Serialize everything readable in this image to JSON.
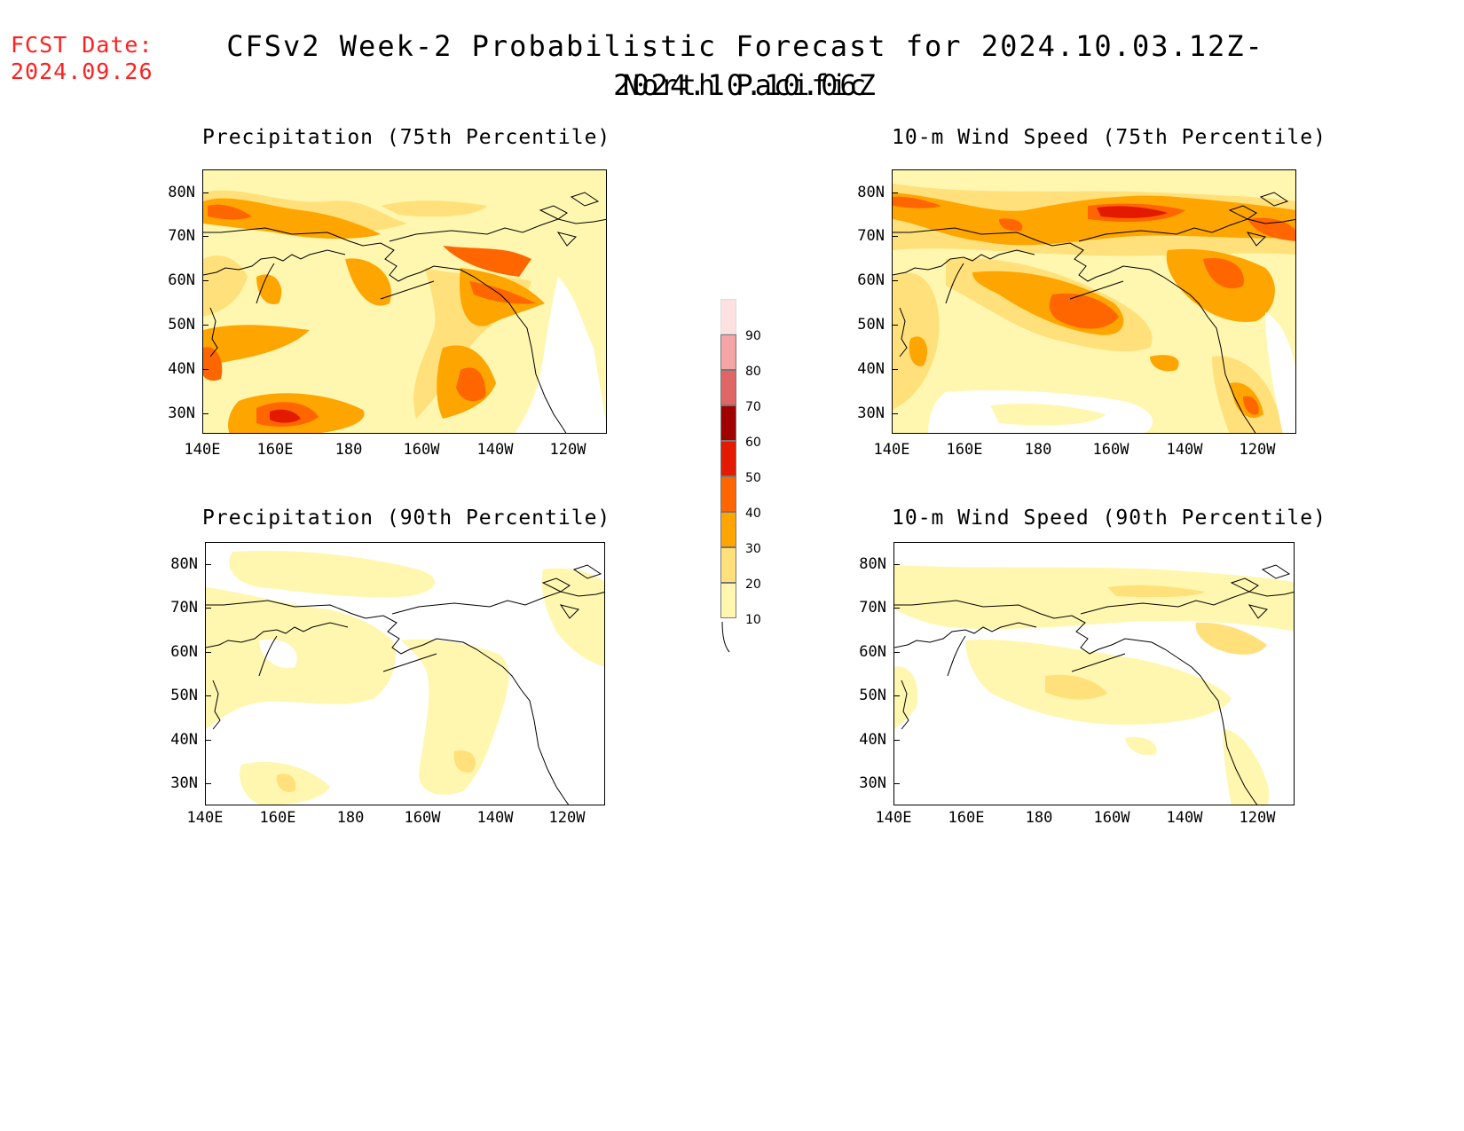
{
  "header": {
    "fcst_label": "FCST Date:",
    "fcst_date": "2024.09.26",
    "title": "CFSv2 Week-2 Probabilistic Forecast for 2024.10.03.12Z-2024.10.10.06Z",
    "subtitle": "North Pacific"
  },
  "panels": [
    {
      "title": "Precipitation (75th Percentile)"
    },
    {
      "title": "10-m Wind Speed (75th Percentile)"
    },
    {
      "title": "Precipitation (90th Percentile)"
    },
    {
      "title": "10-m Wind Speed (90th Percentile)"
    }
  ],
  "axes": {
    "lat_labels": [
      "80N",
      "70N",
      "60N",
      "50N",
      "40N",
      "30N"
    ],
    "lon_labels": [
      "140E",
      "160E",
      "180",
      "160W",
      "140W",
      "120W"
    ]
  },
  "legend": {
    "labels": [
      "90",
      "80",
      "70",
      "60",
      "50",
      "40",
      "30",
      "20",
      "10"
    ],
    "colors": [
      "#fde0e0",
      "#f4a6a6",
      "#e06666",
      "#a00000",
      "#e31a00",
      "#ff6600",
      "#ffa500",
      "#ffe07a",
      "#fff7b0"
    ]
  },
  "colors": {
    "fcst": "#ff2020",
    "level_10": "#fff7b0",
    "level_20": "#ffe07a",
    "level_30": "#ffa500",
    "level_40": "#ff6600",
    "level_50": "#e31a00",
    "level_60": "#a00000"
  }
}
